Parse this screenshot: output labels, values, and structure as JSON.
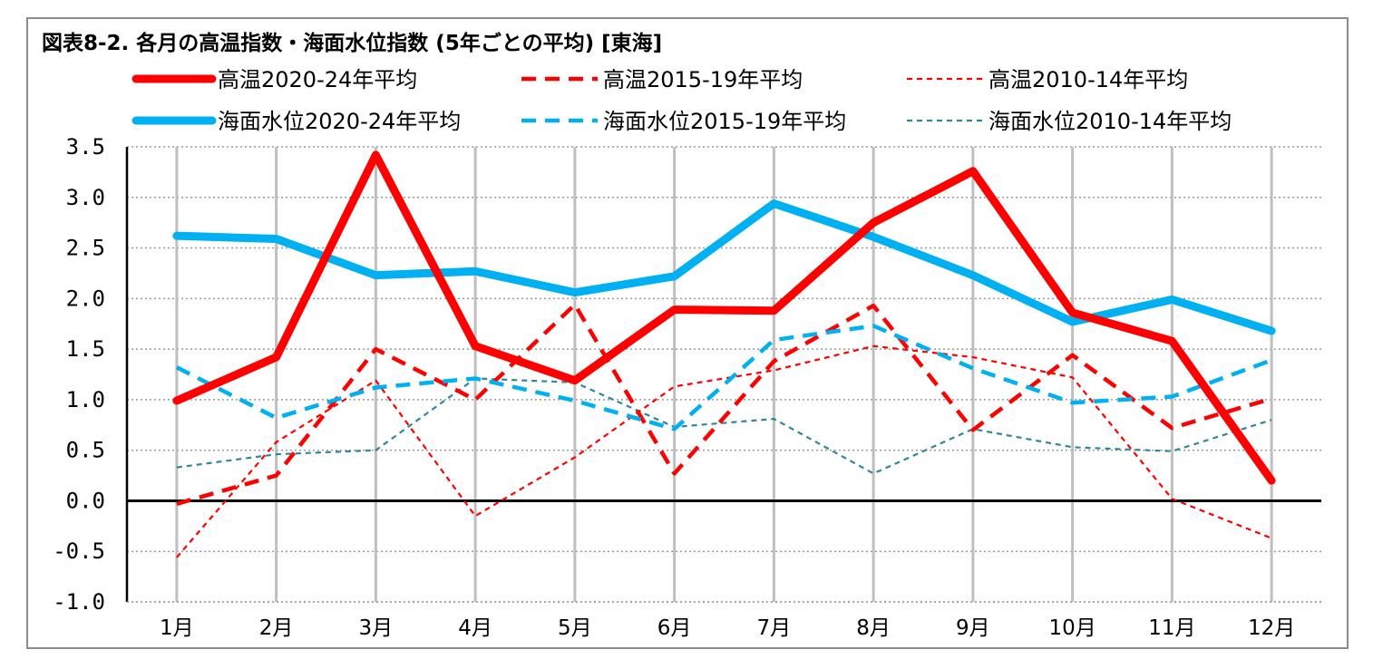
{
  "chart_data": {
    "type": "line",
    "title": "図表8-2. 各月の高温指数・海面水位指数 (5年ごとの平均) [東海]",
    "categories": [
      "1月",
      "2月",
      "3月",
      "4月",
      "5月",
      "6月",
      "7月",
      "8月",
      "9月",
      "10月",
      "11月",
      "12月"
    ],
    "ylim": [
      -1.0,
      3.5
    ],
    "yticks": [
      "3.5",
      "3.0",
      "2.5",
      "2.0",
      "1.5",
      "1.0",
      "0.5",
      "0.0",
      "-0.5",
      "-1.0"
    ],
    "grid": true,
    "legend_position": "top",
    "series": [
      {
        "name": "高温2020-24年平均",
        "color": "#ff0000",
        "style": "solid-thick",
        "values": [
          0.99,
          1.42,
          3.42,
          1.53,
          1.19,
          1.89,
          1.88,
          2.75,
          3.26,
          1.86,
          1.58,
          0.2
        ]
      },
      {
        "name": "高温2015-19年平均",
        "color": "#ff0000",
        "style": "dashed-medium",
        "values": [
          -0.03,
          0.25,
          1.5,
          1.0,
          1.94,
          0.27,
          1.38,
          1.93,
          0.7,
          1.44,
          0.72,
          1.01
        ]
      },
      {
        "name": "高温2010-14年平均",
        "color": "#ff0000",
        "style": "dotted-thin",
        "values": [
          -0.56,
          0.58,
          1.19,
          -0.15,
          0.43,
          1.13,
          1.29,
          1.53,
          1.42,
          1.22,
          0.02,
          -0.37
        ]
      },
      {
        "name": "海面水位2020-24年平均",
        "color": "#00b0f0",
        "style": "solid-thick",
        "values": [
          2.62,
          2.59,
          2.23,
          2.27,
          2.06,
          2.22,
          2.94,
          2.61,
          2.23,
          1.77,
          1.99,
          1.68
        ]
      },
      {
        "name": "海面水位2015-19年平均",
        "color": "#00b0f0",
        "style": "dashed-medium",
        "values": [
          1.32,
          0.82,
          1.12,
          1.21,
          0.99,
          0.71,
          1.59,
          1.73,
          1.31,
          0.97,
          1.03,
          1.39
        ]
      },
      {
        "name": "海面水位2010-14年平均",
        "color": "#31859c",
        "style": "dotted-thin",
        "values": [
          0.33,
          0.46,
          0.5,
          1.21,
          1.17,
          0.73,
          0.81,
          0.27,
          0.71,
          0.53,
          0.49,
          0.8
        ]
      }
    ]
  }
}
